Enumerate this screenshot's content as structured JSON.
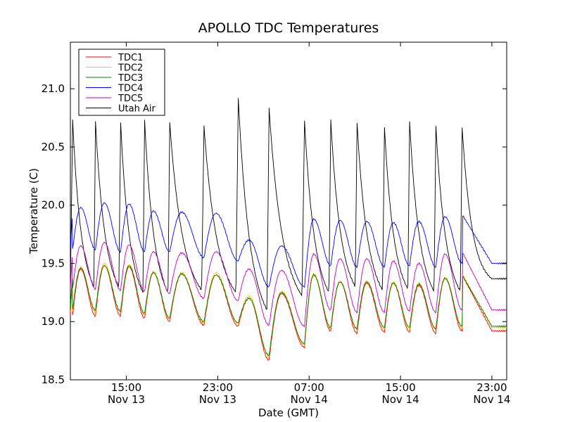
{
  "chart_data": {
    "type": "line",
    "title": "APOLLO TDC Temperatures",
    "xlabel": "Date (GMT)",
    "ylabel": "Temperature (C)",
    "x_unit": "hours since Nov 13 00:00 GMT",
    "xlim": [
      10.1,
      48.3
    ],
    "ylim": [
      18.5,
      21.4
    ],
    "grid": false,
    "legend_position": "top-left",
    "y_ticks": [
      "18.5",
      "19.0",
      "19.5",
      "20.0",
      "20.5",
      "21.0"
    ],
    "x_ticks": [
      {
        "value": 15,
        "time": "15:00",
        "date": "Nov 13"
      },
      {
        "value": 23,
        "time": "23:00",
        "date": "Nov 13"
      },
      {
        "value": 31,
        "time": "07:00",
        "date": "Nov 14"
      },
      {
        "value": 39,
        "time": "15:00",
        "date": "Nov 14"
      },
      {
        "value": 47,
        "time": "23:00",
        "date": "Nov 14"
      }
    ],
    "series": [
      {
        "name": "TDC1",
        "color": "#ff0000"
      },
      {
        "name": "TDC2",
        "color": "#ffbf00"
      },
      {
        "name": "TDC3",
        "color": "#008000"
      },
      {
        "name": "TDC4",
        "color": "#0000ff"
      },
      {
        "name": "TDC5",
        "color": "#bf00bf"
      },
      {
        "name": "Utah Air",
        "color": "#000000"
      }
    ],
    "cycle_peak_hours": [
      10.3,
      12.3,
      14.5,
      16.6,
      18.8,
      21.8,
      24.8,
      27.5,
      30.6,
      32.9,
      35.2,
      37.6,
      39.8,
      42.1,
      44.4
    ],
    "cycle_peaks": {
      "TDC1": [
        19.45,
        19.48,
        19.47,
        19.42,
        19.41,
        19.4,
        19.2,
        19.24,
        19.4,
        19.34,
        19.33,
        19.33,
        19.31,
        19.37,
        19.4
      ],
      "TDC2": [
        19.47,
        19.5,
        19.49,
        19.43,
        19.42,
        19.42,
        19.22,
        19.26,
        19.41,
        19.35,
        19.35,
        19.34,
        19.33,
        19.38,
        19.41
      ],
      "TDC3": [
        19.46,
        19.48,
        19.48,
        19.42,
        19.41,
        19.4,
        19.2,
        19.25,
        19.4,
        19.34,
        19.34,
        19.33,
        19.32,
        19.37,
        19.4
      ],
      "TDC4": [
        19.98,
        20.02,
        20.01,
        19.95,
        19.94,
        19.93,
        19.7,
        19.65,
        19.88,
        19.87,
        19.86,
        19.85,
        19.86,
        19.9,
        19.92
      ],
      "TDC5": [
        19.65,
        19.68,
        19.66,
        19.6,
        19.59,
        19.6,
        19.45,
        19.44,
        19.58,
        19.54,
        19.54,
        19.52,
        19.5,
        19.58,
        19.6
      ],
      "Utah Air": [
        20.73,
        20.72,
        20.71,
        20.73,
        20.71,
        20.68,
        20.92,
        20.83,
        20.73,
        20.73,
        20.71,
        20.67,
        20.72,
        20.68,
        20.67
      ]
    },
    "cycle_troughs": {
      "TDC1": [
        19.05,
        19.05,
        19.03,
        19.0,
        18.97,
        18.96,
        18.67,
        18.78,
        18.92,
        18.9,
        18.91,
        18.91,
        18.9,
        18.92,
        18.92
      ],
      "TDC2": [
        19.08,
        19.08,
        19.06,
        19.02,
        18.99,
        18.98,
        18.7,
        18.8,
        18.94,
        18.93,
        18.94,
        18.93,
        18.93,
        18.95,
        18.95
      ],
      "TDC3": [
        19.1,
        19.09,
        19.07,
        19.03,
        19.0,
        18.99,
        18.71,
        18.81,
        18.95,
        18.94,
        18.95,
        18.95,
        18.94,
        18.96,
        18.96
      ],
      "TDC4": [
        19.62,
        19.6,
        19.6,
        19.6,
        19.55,
        19.52,
        19.3,
        19.3,
        19.48,
        19.47,
        19.47,
        19.48,
        19.47,
        19.5,
        19.5
      ],
      "TDC5": [
        19.28,
        19.27,
        19.26,
        19.24,
        19.2,
        19.18,
        18.97,
        18.96,
        19.1,
        19.08,
        19.08,
        19.09,
        19.08,
        19.1,
        19.1
      ],
      "Utah Air": [
        19.3,
        19.3,
        19.25,
        19.25,
        19.27,
        19.25,
        19.1,
        19.22,
        19.25,
        19.3,
        19.27,
        19.28,
        19.26,
        19.26,
        19.3
      ]
    }
  }
}
